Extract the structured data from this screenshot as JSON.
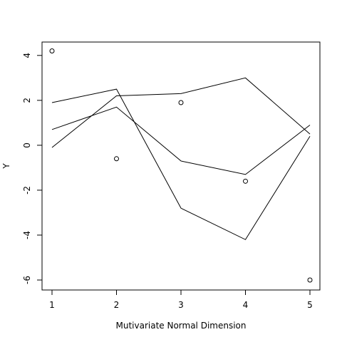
{
  "chart_data": {
    "type": "line",
    "title": "",
    "xlabel": "Mutivariate Normal Dimension",
    "ylabel": "Y",
    "x": [
      1,
      2,
      3,
      4,
      5
    ],
    "xlim": [
      1,
      5
    ],
    "ylim": [
      -6,
      4.2
    ],
    "xticks": [
      1,
      2,
      3,
      4,
      5
    ],
    "yticks": [
      -6,
      -4,
      -2,
      0,
      2,
      4
    ],
    "xtick_labels": [
      "1",
      "2",
      "3",
      "4",
      "5"
    ],
    "ytick_labels": [
      "-6",
      "-4",
      "-2",
      "0",
      "2",
      "4"
    ],
    "grid": false,
    "legend": "none",
    "points": [
      4.2,
      -0.6,
      1.9,
      -1.6,
      -6.0
    ],
    "series": [
      {
        "values": [
          1.9,
          2.5,
          -2.8,
          -4.2,
          0.4
        ]
      },
      {
        "values": [
          0.7,
          1.7,
          -0.7,
          -1.3,
          0.9
        ]
      },
      {
        "values": [
          -0.1,
          2.2,
          2.3,
          3.0,
          0.5
        ]
      }
    ]
  }
}
